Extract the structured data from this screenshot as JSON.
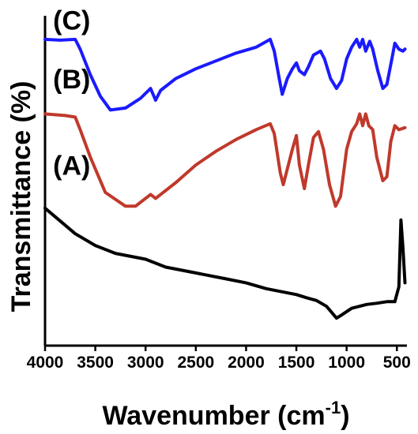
{
  "chart_data": {
    "type": "line",
    "title": "",
    "xlabel_main": "Wavenumber (cm",
    "xlabel_sup": "-1",
    "xlabel_tail": ")",
    "ylabel": "Transmittance (%)",
    "xlim": [
      4000,
      400
    ],
    "x_reversed": true,
    "y_ticks_shown": false,
    "grid": false,
    "xticks": [
      4000,
      3500,
      3000,
      2500,
      2000,
      1500,
      1000,
      500
    ],
    "xtick_labels": [
      "4000",
      "3500",
      "3000",
      "2500",
      "2000",
      "1500",
      "1000",
      "500"
    ],
    "series": [
      {
        "name": "(A)",
        "color": "#000000",
        "points": [
          [
            4000,
            3.5
          ],
          [
            3700,
            2.85
          ],
          [
            3500,
            2.55
          ],
          [
            3300,
            2.35
          ],
          [
            3000,
            2.2
          ],
          [
            2800,
            2.0
          ],
          [
            2500,
            1.85
          ],
          [
            2200,
            1.7
          ],
          [
            2000,
            1.6
          ],
          [
            1800,
            1.45
          ],
          [
            1600,
            1.35
          ],
          [
            1500,
            1.3
          ],
          [
            1400,
            1.22
          ],
          [
            1300,
            1.15
          ],
          [
            1200,
            1.0
          ],
          [
            1150,
            0.85
          ],
          [
            1100,
            0.7
          ],
          [
            1050,
            0.78
          ],
          [
            950,
            0.95
          ],
          [
            800,
            1.05
          ],
          [
            700,
            1.08
          ],
          [
            600,
            1.12
          ],
          [
            520,
            1.12
          ],
          [
            480,
            1.5
          ],
          [
            460,
            3.2
          ],
          [
            440,
            2.5
          ],
          [
            420,
            1.6
          ]
        ]
      },
      {
        "name": "(B)",
        "color": "#c0392b",
        "points": [
          [
            4000,
            5.9
          ],
          [
            3800,
            5.86
          ],
          [
            3700,
            5.82
          ],
          [
            3650,
            5.5
          ],
          [
            3550,
            4.8
          ],
          [
            3400,
            3.9
          ],
          [
            3200,
            3.55
          ],
          [
            3100,
            3.55
          ],
          [
            3000,
            3.75
          ],
          [
            2950,
            3.85
          ],
          [
            2900,
            3.75
          ],
          [
            2850,
            3.85
          ],
          [
            2700,
            4.15
          ],
          [
            2500,
            4.6
          ],
          [
            2300,
            4.95
          ],
          [
            2100,
            5.25
          ],
          [
            1900,
            5.5
          ],
          [
            1760,
            5.65
          ],
          [
            1720,
            5.4
          ],
          [
            1660,
            4.4
          ],
          [
            1630,
            4.1
          ],
          [
            1580,
            4.6
          ],
          [
            1540,
            5.0
          ],
          [
            1500,
            5.35
          ],
          [
            1470,
            4.6
          ],
          [
            1420,
            4.0
          ],
          [
            1380,
            4.6
          ],
          [
            1330,
            5.3
          ],
          [
            1280,
            5.45
          ],
          [
            1230,
            5.0
          ],
          [
            1170,
            4.1
          ],
          [
            1110,
            3.55
          ],
          [
            1060,
            3.8
          ],
          [
            1000,
            5.0
          ],
          [
            950,
            5.45
          ],
          [
            900,
            5.65
          ],
          [
            870,
            5.9
          ],
          [
            840,
            5.6
          ],
          [
            810,
            5.9
          ],
          [
            780,
            5.6
          ],
          [
            740,
            5.5
          ],
          [
            700,
            4.8
          ],
          [
            640,
            4.2
          ],
          [
            600,
            4.3
          ],
          [
            560,
            5.2
          ],
          [
            520,
            5.6
          ],
          [
            480,
            5.5
          ],
          [
            420,
            5.55
          ]
        ]
      },
      {
        "name": "(C)",
        "color": "#1a1aff",
        "points": [
          [
            4000,
            7.8
          ],
          [
            3850,
            7.78
          ],
          [
            3700,
            7.8
          ],
          [
            3650,
            7.55
          ],
          [
            3550,
            6.9
          ],
          [
            3450,
            6.35
          ],
          [
            3350,
            6.0
          ],
          [
            3200,
            6.05
          ],
          [
            3050,
            6.3
          ],
          [
            2950,
            6.55
          ],
          [
            2900,
            6.25
          ],
          [
            2850,
            6.5
          ],
          [
            2700,
            6.8
          ],
          [
            2500,
            7.05
          ],
          [
            2300,
            7.25
          ],
          [
            2100,
            7.45
          ],
          [
            1900,
            7.6
          ],
          [
            1760,
            7.8
          ],
          [
            1720,
            7.5
          ],
          [
            1670,
            6.8
          ],
          [
            1640,
            6.4
          ],
          [
            1590,
            6.8
          ],
          [
            1540,
            7.05
          ],
          [
            1500,
            7.2
          ],
          [
            1470,
            7.0
          ],
          [
            1420,
            6.9
          ],
          [
            1380,
            7.1
          ],
          [
            1330,
            7.4
          ],
          [
            1260,
            7.5
          ],
          [
            1220,
            7.3
          ],
          [
            1160,
            6.8
          ],
          [
            1100,
            6.55
          ],
          [
            1050,
            6.75
          ],
          [
            1000,
            7.3
          ],
          [
            950,
            7.6
          ],
          [
            900,
            7.8
          ],
          [
            870,
            7.6
          ],
          [
            840,
            7.8
          ],
          [
            810,
            7.5
          ],
          [
            770,
            7.75
          ],
          [
            740,
            7.55
          ],
          [
            690,
            7.0
          ],
          [
            640,
            6.55
          ],
          [
            600,
            6.65
          ],
          [
            550,
            7.3
          ],
          [
            520,
            7.7
          ],
          [
            480,
            7.55
          ],
          [
            440,
            7.5
          ],
          [
            420,
            7.55
          ]
        ]
      }
    ],
    "ylim": [
      0,
      8.4
    ],
    "labels": [
      {
        "text": "(A)",
        "x": 3920,
        "y": 4.35
      },
      {
        "text": "(B)",
        "x": 3920,
        "y": 6.55
      },
      {
        "text": "(C)",
        "x": 3920,
        "y": 8.05
      }
    ]
  }
}
